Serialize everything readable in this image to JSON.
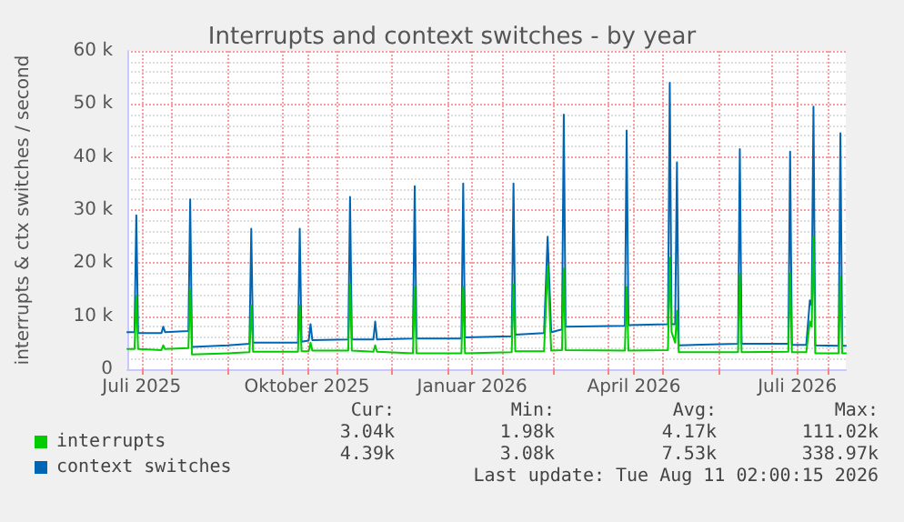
{
  "chart_data": {
    "type": "line",
    "title": "Interrupts and context switches - by year",
    "ylabel": "interrupts & ctx switches / second",
    "x": [
      "2025-07-07",
      "2025-07-11",
      "2025-07-12",
      "2025-07-13",
      "2025-07-26",
      "2025-07-27",
      "2025-07-28",
      "2025-08-10",
      "2025-08-11",
      "2025-08-12",
      "2025-09-01",
      "2025-09-13",
      "2025-09-14",
      "2025-09-15",
      "2025-10-10",
      "2025-10-11",
      "2025-10-12",
      "2025-10-16",
      "2025-10-17",
      "2025-10-18",
      "2025-11-07",
      "2025-11-08",
      "2025-11-09",
      "2025-11-21",
      "2025-11-22",
      "2025-11-23",
      "2025-12-13",
      "2025-12-14",
      "2025-12-15",
      "2026-01-09",
      "2026-01-10",
      "2026-01-11",
      "2026-02-06",
      "2026-02-07",
      "2026-02-08",
      "2026-02-24",
      "2026-02-26",
      "2026-02-28",
      "2026-03-06",
      "2026-03-07",
      "2026-03-08",
      "2026-04-10",
      "2026-04-11",
      "2026-04-12",
      "2026-05-04",
      "2026-05-05",
      "2026-05-06",
      "2026-05-08",
      "2026-05-09",
      "2026-05-10",
      "2026-06-12",
      "2026-06-13",
      "2026-06-14",
      "2026-07-10",
      "2026-07-11",
      "2026-07-12",
      "2026-07-20",
      "2026-07-22",
      "2026-07-23",
      "2026-07-24",
      "2026-07-25",
      "2026-08-07",
      "2026-08-08",
      "2026-08-09",
      "2026-08-11"
    ],
    "series": [
      {
        "name": "interrupts",
        "color": "#00cc00",
        "values": [
          3800,
          3800,
          13800,
          3800,
          3600,
          4500,
          3800,
          4000,
          15000,
          2800,
          3000,
          3200,
          12000,
          3300,
          3300,
          12000,
          3400,
          3400,
          5000,
          3500,
          3500,
          16000,
          3500,
          3300,
          4500,
          3300,
          3000,
          15500,
          3000,
          3000,
          15500,
          3000,
          3200,
          16000,
          3400,
          3400,
          19500,
          3500,
          3600,
          19000,
          3600,
          3500,
          15500,
          3500,
          3600,
          21000,
          7000,
          5000,
          11000,
          3200,
          3200,
          18000,
          3200,
          3300,
          18000,
          3200,
          3200,
          9000,
          8000,
          25000,
          3000,
          3000,
          17500,
          3000,
          3000
        ]
      },
      {
        "name": "context switches",
        "color": "#0066b3",
        "values": [
          7000,
          7000,
          29000,
          6800,
          6800,
          8000,
          7000,
          7200,
          32000,
          4200,
          4500,
          4800,
          26500,
          5000,
          5000,
          26500,
          5200,
          5400,
          8500,
          5500,
          5600,
          32500,
          5600,
          5600,
          9000,
          5600,
          5800,
          34500,
          5800,
          5800,
          35000,
          6000,
          6200,
          35000,
          6500,
          6800,
          25000,
          7000,
          7500,
          48000,
          8000,
          8200,
          45000,
          8300,
          8500,
          54000,
          8500,
          8500,
          39000,
          4500,
          4800,
          41500,
          4800,
          4800,
          41000,
          4600,
          4600,
          13000,
          12000,
          49500,
          4500,
          4400,
          44500,
          4400,
          4400
        ]
      }
    ],
    "xlim": [
      "2025-07-07",
      "2026-08-11"
    ],
    "xticks": [
      {
        "value": "2025-07-15",
        "label": "Juli 2025"
      },
      {
        "value": "2025-08-01",
        "label": null
      },
      {
        "value": "2025-09-01",
        "label": null
      },
      {
        "value": "2025-10-01",
        "label": null
      },
      {
        "value": "2025-10-15",
        "label": "Oktober 2025"
      },
      {
        "value": "2025-11-01",
        "label": null
      },
      {
        "value": "2025-12-01",
        "label": null
      },
      {
        "value": "2026-01-01",
        "label": null
      },
      {
        "value": "2026-01-15",
        "label": "Januar 2026"
      },
      {
        "value": "2026-02-01",
        "label": null
      },
      {
        "value": "2026-03-01",
        "label": null
      },
      {
        "value": "2026-04-01",
        "label": null
      },
      {
        "value": "2026-04-15",
        "label": "April 2026"
      },
      {
        "value": "2026-05-01",
        "label": null
      },
      {
        "value": "2026-06-01",
        "label": null
      },
      {
        "value": "2026-07-01",
        "label": null
      },
      {
        "value": "2026-07-15",
        "label": "Juli 2026"
      },
      {
        "value": "2026-08-01",
        "label": null
      }
    ],
    "ylim": [
      0,
      60000
    ],
    "yticks": [
      0,
      {
        "value": 10000,
        "label": "10 k"
      },
      {
        "value": 20000,
        "label": "20 k"
      },
      {
        "value": 30000,
        "label": "30 k"
      },
      {
        "value": 40000,
        "label": "40 k"
      },
      {
        "value": 50000,
        "label": "50 k"
      },
      {
        "value": 60000,
        "label": "60 k"
      }
    ],
    "grid": true,
    "legend": "bottom",
    "marker": "none",
    "line_style": "solid",
    "annotations": [
      "Cur:",
      "Min:",
      "Avg:",
      "Max:",
      "3.04k",
      "1.98k",
      "4.17k",
      "111.02k",
      "4.39k",
      "3.08k",
      "7.53k",
      "338.97k",
      "Last update: Tue Aug 11 02:00:15 2026"
    ]
  }
}
